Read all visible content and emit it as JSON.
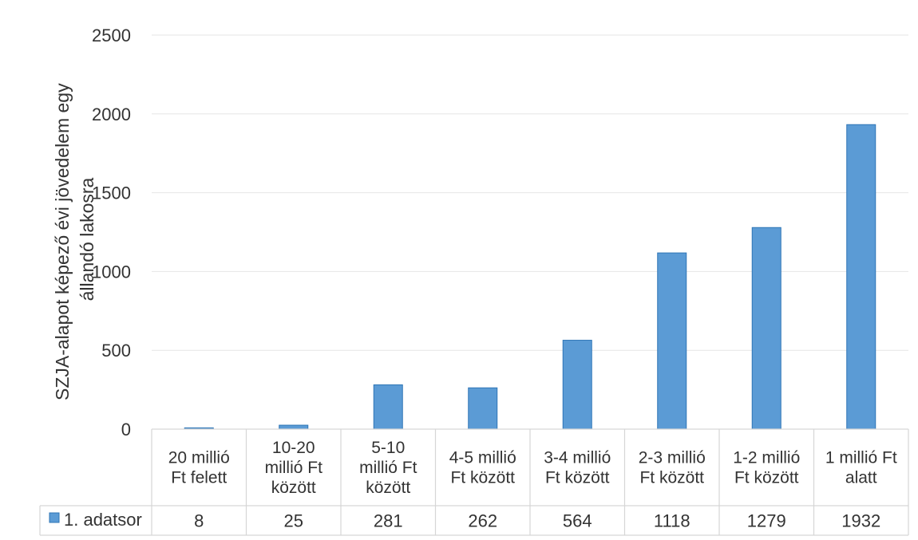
{
  "chart_data": {
    "type": "bar",
    "categories": [
      [
        "20 millió",
        "Ft felett"
      ],
      [
        "10-20",
        "millió Ft",
        "között"
      ],
      [
        "5-10",
        "millió Ft",
        "között"
      ],
      [
        "4-5 millió",
        "Ft között"
      ],
      [
        "3-4 millió",
        "Ft között"
      ],
      [
        "2-3 millió",
        "Ft között"
      ],
      [
        "1-2 millió",
        "Ft között"
      ],
      [
        "1 millió Ft",
        "alatt"
      ]
    ],
    "series": [
      {
        "name": "1. adatsor",
        "values": [
          8,
          25,
          281,
          262,
          564,
          1118,
          1279,
          1932
        ],
        "table_values": [
          "8",
          "25",
          "281",
          "262",
          "564",
          "1118",
          "1279",
          "1932"
        ]
      }
    ],
    "ylabel": [
      "SZJA-alapot képező évi jövedelem egy",
      "állandó lakosra"
    ],
    "ylim": [
      0,
      2500
    ],
    "yticks": [
      0,
      500,
      1000,
      1500,
      2000,
      2500
    ],
    "grid": true,
    "legend": "data-table",
    "colors": {
      "bar": "#5b9bd5",
      "bar_edge": "#2e75b6"
    }
  }
}
